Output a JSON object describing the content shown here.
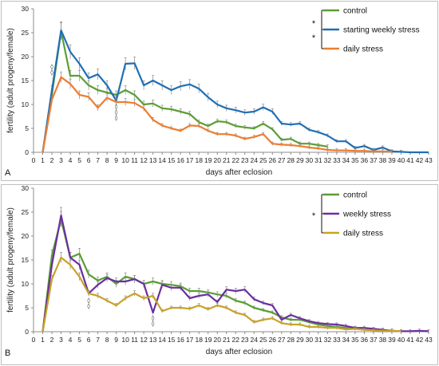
{
  "chart_data": [
    {
      "type": "line",
      "panel_label": "A",
      "xlabel": "days after eclosion",
      "ylabel": "fertility (adult progeny/female)",
      "xlim": [
        0,
        43
      ],
      "ylim": [
        0,
        30
      ],
      "yticks": [
        0,
        5,
        10,
        15,
        20,
        25,
        30
      ],
      "grid": false,
      "legend_position": "top-right",
      "legend_star": "*",
      "series": [
        {
          "name": "control",
          "color": "#5a9e34",
          "x": [
            1,
            2,
            3,
            4,
            5,
            6,
            7,
            8,
            9,
            10,
            11,
            12,
            13,
            14,
            15,
            16,
            17,
            18,
            19,
            20,
            21,
            22,
            23,
            24,
            25,
            26,
            27,
            28,
            29,
            30,
            31,
            32
          ],
          "y": [
            0,
            12,
            25.3,
            16,
            16,
            14,
            13,
            12.5,
            12,
            13,
            12,
            10,
            10.2,
            9.2,
            9,
            8.5,
            8,
            6.3,
            5.5,
            6.5,
            6.3,
            5.5,
            5.2,
            5,
            6,
            4.8,
            2.6,
            2.8,
            1.8,
            1.8,
            1.5,
            1.2
          ]
        },
        {
          "name": "starting weekly stress",
          "color": "#1f6fb5",
          "x": [
            1,
            2,
            3,
            4,
            5,
            6,
            7,
            8,
            9,
            10,
            11,
            12,
            13,
            14,
            15,
            16,
            17,
            18,
            19,
            20,
            21,
            22,
            23,
            24,
            25,
            26,
            27,
            28,
            29,
            30,
            31,
            32,
            33,
            34,
            35,
            36,
            37,
            38,
            39,
            40,
            41,
            42,
            43
          ],
          "y": [
            0,
            13,
            25.5,
            21,
            18.5,
            15.5,
            16.3,
            14,
            10.8,
            18.5,
            18.6,
            14,
            15,
            14,
            13,
            13.8,
            14.2,
            13.3,
            11.5,
            10,
            9.2,
            8.8,
            8.3,
            8.5,
            9.4,
            8.5,
            6,
            5.8,
            6,
            4.7,
            4.2,
            3.5,
            2.3,
            2.3,
            0.9,
            1.3,
            0.5,
            1,
            0.2,
            0.1,
            0,
            0,
            0
          ]
        },
        {
          "name": "daily stress",
          "color": "#ed7d31",
          "x": [
            1,
            2,
            3,
            4,
            5,
            6,
            7,
            8,
            9,
            10,
            11,
            12,
            13,
            14,
            15,
            16,
            17,
            18,
            19,
            20,
            21,
            22,
            23,
            24,
            25,
            26,
            27,
            28,
            29,
            30,
            31,
            32,
            33,
            34,
            35,
            36,
            37,
            38,
            39
          ],
          "y": [
            0,
            11,
            15.7,
            14.3,
            12,
            11.6,
            9.3,
            11.4,
            10.5,
            10.5,
            10.3,
            9.2,
            6.8,
            5.6,
            5,
            4.5,
            5.6,
            5.5,
            4.5,
            3.8,
            3.8,
            3.5,
            2.8,
            3.2,
            3.8,
            1.8,
            1.6,
            1.5,
            1.3,
            1,
            0.8,
            0.5,
            0.4,
            0.4,
            0.3,
            0.3,
            0.2,
            0.2,
            0.1
          ]
        }
      ],
      "annotations": [
        {
          "x": 2,
          "y": 17.5,
          "text": "◊"
        },
        {
          "x": 2,
          "y": 16.3,
          "text": "◊"
        },
        {
          "x": 9,
          "y": 9.2,
          "text": "◊"
        },
        {
          "x": 9,
          "y": 8.0,
          "text": "◊"
        },
        {
          "x": 9,
          "y": 6.8,
          "text": "◊"
        }
      ]
    },
    {
      "type": "line",
      "panel_label": "B",
      "xlabel": "days after eclosion",
      "ylabel": "fertility (adult progeny/female)",
      "xlim": [
        0,
        43
      ],
      "ylim": [
        0,
        30
      ],
      "yticks": [
        0,
        5,
        10,
        15,
        20,
        25,
        30
      ],
      "grid": false,
      "legend_position": "top-right",
      "legend_star": "*",
      "series": [
        {
          "name": "control",
          "color": "#5a9e34",
          "x": [
            1,
            2,
            3,
            4,
            5,
            6,
            7,
            8,
            9,
            10,
            11,
            12,
            13,
            14,
            15,
            16,
            17,
            18,
            19,
            20,
            21,
            22,
            23,
            24,
            25,
            26,
            27,
            28,
            29,
            30,
            31,
            32,
            33,
            34,
            35,
            36,
            37,
            38,
            39
          ],
          "y": [
            0,
            16,
            23.5,
            15.5,
            16.3,
            12,
            10.7,
            11.5,
            10,
            11.5,
            11,
            10,
            10.5,
            10,
            9.8,
            9.5,
            8.5,
            8.5,
            8.2,
            7.8,
            7.5,
            6.5,
            6,
            5,
            4.5,
            4,
            3,
            2.5,
            2.5,
            2,
            1.5,
            1.2,
            1,
            0.8,
            0.7,
            0.6,
            0.4,
            0.3,
            0.2
          ]
        },
        {
          "name": "weekly stress",
          "color": "#6a2fa0",
          "x": [
            1,
            2,
            3,
            4,
            5,
            6,
            7,
            8,
            9,
            10,
            11,
            12,
            13,
            14,
            15,
            16,
            17,
            18,
            19,
            20,
            21,
            22,
            23,
            24,
            25,
            26,
            27,
            28,
            29,
            30,
            31,
            32,
            33,
            34,
            35,
            36,
            37,
            38,
            39,
            40,
            41,
            42,
            43
          ],
          "y": [
            0,
            14,
            24.3,
            15.5,
            14,
            8,
            9.8,
            11.2,
            10.5,
            10.5,
            11,
            10,
            4,
            9.8,
            9.2,
            9.2,
            7,
            7.5,
            7.8,
            6.2,
            8.8,
            8.5,
            8.8,
            6.8,
            6,
            5.5,
            2.5,
            3.5,
            2.8,
            2.2,
            1.8,
            1.6,
            1.5,
            1.2,
            0.8,
            0.8,
            0.6,
            0.4,
            0.2,
            0.1,
            0.1,
            0.2,
            0.1
          ]
        },
        {
          "name": "daily stress",
          "color": "#c9a227",
          "x": [
            1,
            2,
            3,
            4,
            5,
            6,
            7,
            8,
            9,
            10,
            11,
            12,
            13,
            14,
            15,
            16,
            17,
            18,
            19,
            20,
            21,
            22,
            23,
            24,
            25,
            26,
            27,
            28,
            29,
            30,
            31,
            32,
            33,
            34,
            35,
            36,
            37,
            38,
            39,
            40
          ],
          "y": [
            0,
            11,
            15.5,
            14,
            11.5,
            8,
            7.5,
            6.5,
            5.5,
            7,
            8,
            7,
            7.5,
            4.3,
            5,
            5,
            4.8,
            5.5,
            4.7,
            5.5,
            5,
            4,
            3.5,
            2,
            2.5,
            2.8,
            1.8,
            1.5,
            1.5,
            1,
            1,
            0.8,
            0.8,
            0.5,
            0.6,
            0.4,
            0.3,
            0.2,
            0.2,
            0.1
          ]
        }
      ],
      "annotations": [
        {
          "x": 6,
          "y": 6.2,
          "text": "◊"
        },
        {
          "x": 6,
          "y": 5.0,
          "text": "◊"
        },
        {
          "x": 13,
          "y": 2.5,
          "text": "◊"
        },
        {
          "x": 13,
          "y": 1.3,
          "text": "◊"
        }
      ]
    }
  ]
}
